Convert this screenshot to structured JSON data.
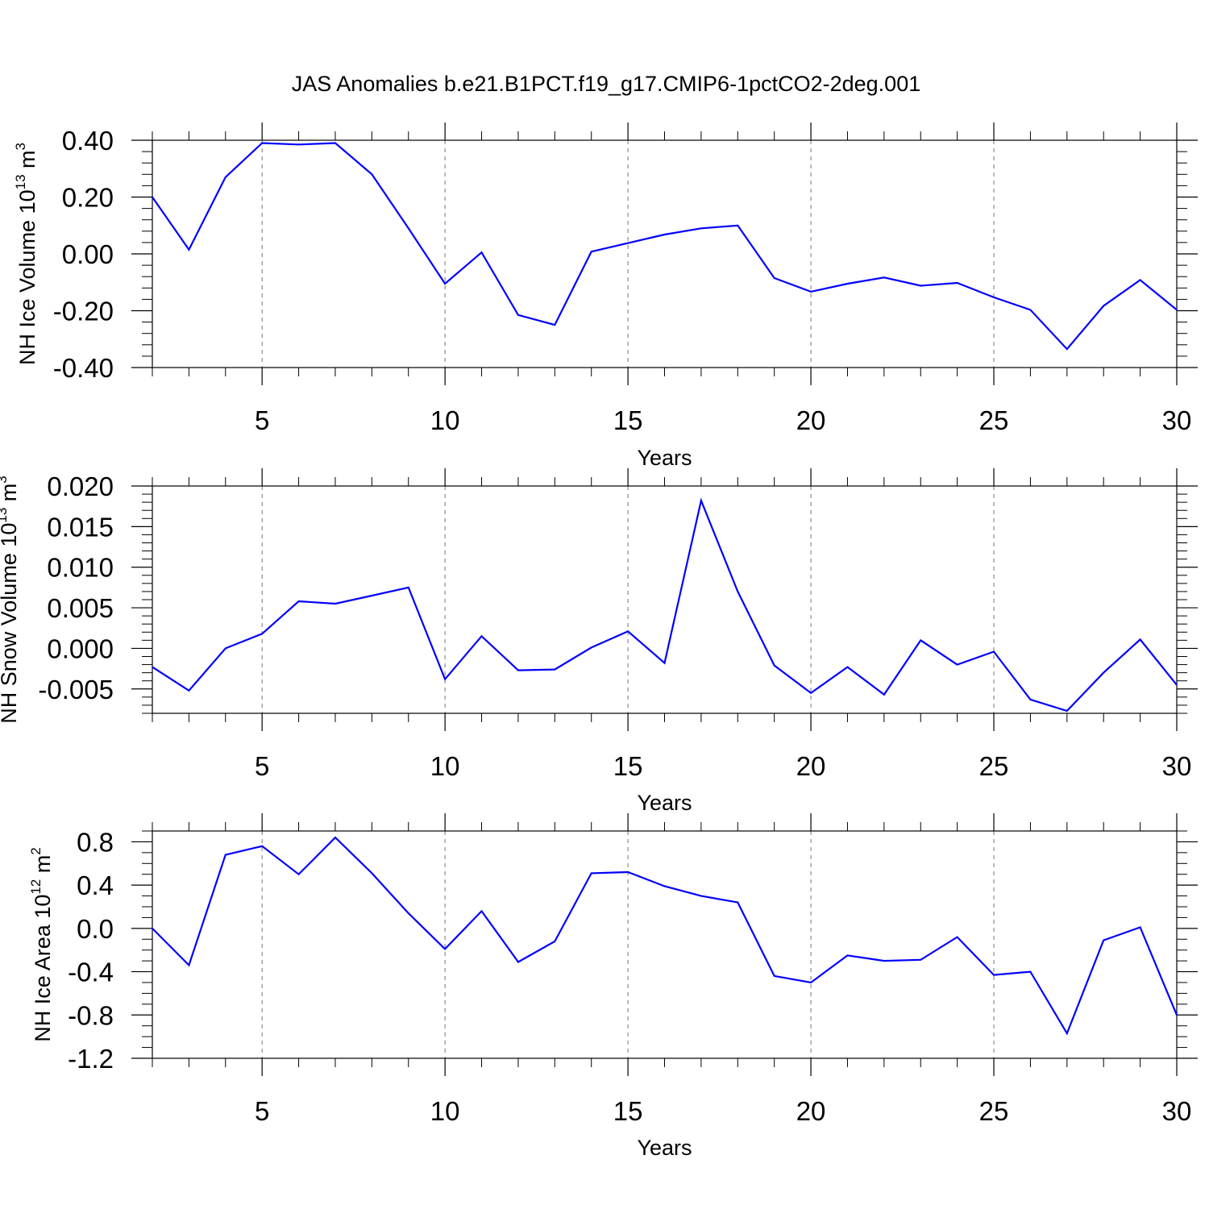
{
  "title": "JAS Anomalies b.e21.B1PCT.f19_g17.CMIP6-1pctCO2-2deg.001",
  "colors": {
    "series": "#0000ff",
    "frame": "#000000",
    "grid": "#777777"
  },
  "chart_data": [
    {
      "type": "line",
      "xlabel": "Years",
      "ylabel_parts": {
        "base": "NH Ice Volume 10",
        "exp": "13",
        "unit": " m",
        "unit_exp": "3"
      },
      "xlim": [
        2,
        30
      ],
      "ylim": [
        -0.4,
        0.4
      ],
      "x_ticks": [
        "5",
        "10",
        "15",
        "20",
        "25",
        "30"
      ],
      "y_ticks": [
        "0.40",
        "0.20",
        "0.00",
        "-0.20",
        "-0.40"
      ],
      "grid": "vertical dashed at x major ticks",
      "x": [
        2,
        3,
        4,
        5,
        6,
        7,
        8,
        9,
        10,
        11,
        12,
        13,
        14,
        15,
        16,
        17,
        18,
        19,
        20,
        21,
        22,
        23,
        24,
        25,
        26,
        27,
        28,
        29,
        30
      ],
      "values": [
        0.2,
        0.015,
        0.27,
        0.39,
        0.385,
        0.39,
        0.28,
        0.09,
        -0.105,
        0.005,
        -0.215,
        -0.25,
        0.008,
        0.038,
        0.068,
        0.09,
        0.1,
        -0.085,
        -0.133,
        -0.105,
        -0.083,
        -0.112,
        -0.102,
        -0.153,
        -0.197,
        -0.335,
        -0.183,
        -0.092,
        -0.197
      ]
    },
    {
      "type": "line",
      "xlabel": "Years",
      "ylabel_parts": {
        "base": "NH Snow Volume 10",
        "exp": "13",
        "unit": " m",
        "unit_exp": "3"
      },
      "xlim": [
        2,
        30
      ],
      "ylim": [
        -0.008,
        0.02
      ],
      "x_ticks": [
        "5",
        "10",
        "15",
        "20",
        "25",
        "30"
      ],
      "y_ticks": [
        "0.020",
        "0.015",
        "0.010",
        "0.005",
        "0.000",
        "-0.005"
      ],
      "grid": "vertical dashed at x major ticks",
      "x": [
        2,
        3,
        4,
        5,
        6,
        7,
        8,
        9,
        10,
        11,
        12,
        13,
        14,
        15,
        16,
        17,
        18,
        19,
        20,
        21,
        22,
        23,
        24,
        25,
        26,
        27,
        28,
        29,
        30
      ],
      "values": [
        -0.0023,
        -0.0052,
        0.0,
        0.0018,
        0.0058,
        0.0055,
        0.0065,
        0.0075,
        -0.0038,
        0.0015,
        -0.0027,
        -0.0026,
        0.0001,
        0.0021,
        -0.0018,
        0.0182,
        0.007,
        -0.0021,
        -0.0055,
        -0.0023,
        -0.0057,
        0.001,
        -0.002,
        -0.0004,
        -0.0063,
        -0.0077,
        -0.003,
        0.0011,
        -0.0045
      ]
    },
    {
      "type": "line",
      "xlabel": "Years",
      "ylabel_parts": {
        "base": "NH Ice Area 10",
        "exp": "12",
        "unit": " m",
        "unit_exp": "2"
      },
      "xlim": [
        2,
        30
      ],
      "ylim": [
        -1.2,
        0.9
      ],
      "x_ticks": [
        "5",
        "10",
        "15",
        "20",
        "25",
        "30"
      ],
      "y_ticks": [
        "0.8",
        "0.4",
        "0.0",
        "-0.4",
        "-0.8",
        "-1.2"
      ],
      "grid": "vertical dashed at x major ticks",
      "x": [
        2,
        3,
        4,
        5,
        6,
        7,
        8,
        9,
        10,
        11,
        12,
        13,
        14,
        15,
        16,
        17,
        18,
        19,
        20,
        21,
        22,
        23,
        24,
        25,
        26,
        27,
        28,
        29,
        30
      ],
      "values": [
        0.0,
        -0.34,
        0.68,
        0.76,
        0.5,
        0.84,
        0.51,
        0.14,
        -0.19,
        0.16,
        -0.31,
        -0.12,
        0.51,
        0.52,
        0.39,
        0.3,
        0.24,
        -0.44,
        -0.5,
        -0.25,
        -0.3,
        -0.29,
        -0.08,
        -0.43,
        -0.4,
        -0.97,
        -0.11,
        0.01,
        -0.8
      ]
    }
  ]
}
